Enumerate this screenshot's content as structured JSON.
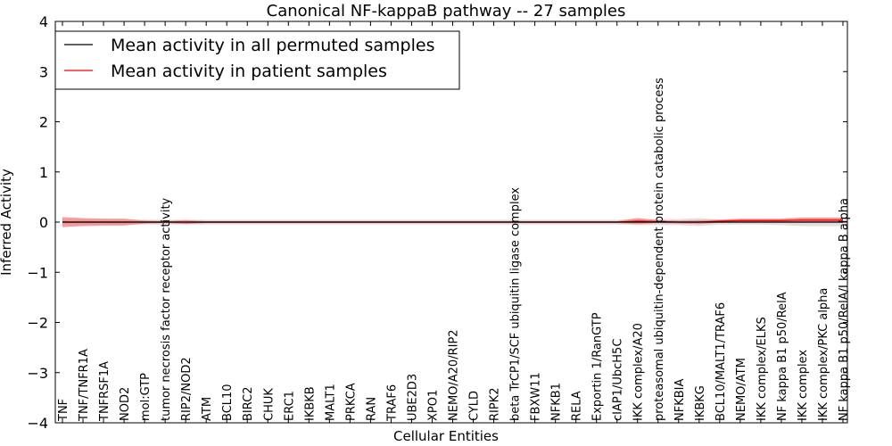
{
  "chart_data": {
    "type": "line",
    "title": "Canonical NF-kappaB pathway -- 27 samples",
    "xlabel": "Cellular Entities",
    "ylabel": "Inferred Activity",
    "ylim": [
      -4,
      4
    ],
    "yticks": [
      -4,
      -3,
      -2,
      -1,
      0,
      1,
      2,
      3,
      4
    ],
    "grid": false,
    "legend_position": "top-left",
    "categories": [
      "TNF",
      "TNF/TNFR1A",
      "TNFRSF1A",
      "NOD2",
      "mol:GTP",
      "tumor necrosis factor receptor activity",
      "RIP2/NOD2",
      "ATM",
      "BCL10",
      "BIRC2",
      "CHUK",
      "ERC1",
      "IKBKB",
      "MALT1",
      "PRKCA",
      "RAN",
      "TRAF6",
      "UBE2D3",
      "XPO1",
      "NEMO/A20/RIP2",
      "CYLD",
      "RIPK2",
      "beta TrCP1/SCF ubiquitin ligase complex",
      "FBXW11",
      "NFKB1",
      "RELA",
      "Exportin 1/RanGTP",
      "cIAP1/UbcH5C",
      "IKK complex/A20",
      "proteasomal ubiquitin-dependent protein catabolic process",
      "NFKBIA",
      "IKBKG",
      "BCL10/MALT1/TRAF6",
      "NEMO/ATM",
      "IKK complex/ELKS",
      "NF kappa B1 p50/RelA",
      "IKK complex",
      "IKK complex/PKC alpha",
      "NF kappa B1 p50/RelA/I kappa B alpha"
    ],
    "series": [
      {
        "name": "Mean activity in all permuted samples",
        "color": "#000000",
        "band_color": "#bbbbbb",
        "values": [
          0,
          0,
          0,
          0,
          0,
          0,
          0,
          0,
          0,
          0,
          0,
          0,
          0,
          0,
          0,
          0,
          0,
          0,
          0,
          0,
          0,
          0,
          0,
          0,
          0,
          0,
          0,
          0,
          0,
          0,
          0,
          0,
          0,
          0,
          0,
          0,
          0,
          0,
          0
        ],
        "spread": [
          0.05,
          0.05,
          0.05,
          0.05,
          0.05,
          0.05,
          0.05,
          0.05,
          0.05,
          0.05,
          0.05,
          0.05,
          0.05,
          0.05,
          0.05,
          0.05,
          0.05,
          0.05,
          0.05,
          0.05,
          0.05,
          0.05,
          0.05,
          0.05,
          0.05,
          0.05,
          0.05,
          0.05,
          0.06,
          0.06,
          0.06,
          0.08,
          0.05,
          0.05,
          0.05,
          0.06,
          0.08,
          0.08,
          0.08
        ]
      },
      {
        "name": "Mean activity in patient samples",
        "color": "#ff0000",
        "band_color": "#f08080",
        "values": [
          0,
          0,
          0,
          0,
          0,
          0,
          0,
          0,
          0,
          0,
          0,
          0,
          0,
          0,
          0,
          0,
          0,
          0,
          0,
          0,
          0,
          0,
          0,
          0,
          0,
          0,
          0,
          0,
          0.02,
          0.01,
          0,
          0,
          0.02,
          0.03,
          0.03,
          0.03,
          0.04,
          0.04,
          0.04
        ],
        "spread": [
          0.1,
          0.08,
          0.07,
          0.07,
          0.03,
          0.02,
          0.04,
          0.02,
          0.02,
          0.02,
          0.02,
          0.02,
          0.02,
          0.02,
          0.02,
          0.02,
          0.02,
          0.02,
          0.02,
          0.02,
          0.02,
          0.02,
          0.02,
          0.02,
          0.02,
          0.02,
          0.02,
          0.02,
          0.06,
          0.03,
          0.03,
          0.04,
          0.03,
          0.04,
          0.04,
          0.04,
          0.05,
          0.05,
          0.05
        ]
      }
    ]
  }
}
